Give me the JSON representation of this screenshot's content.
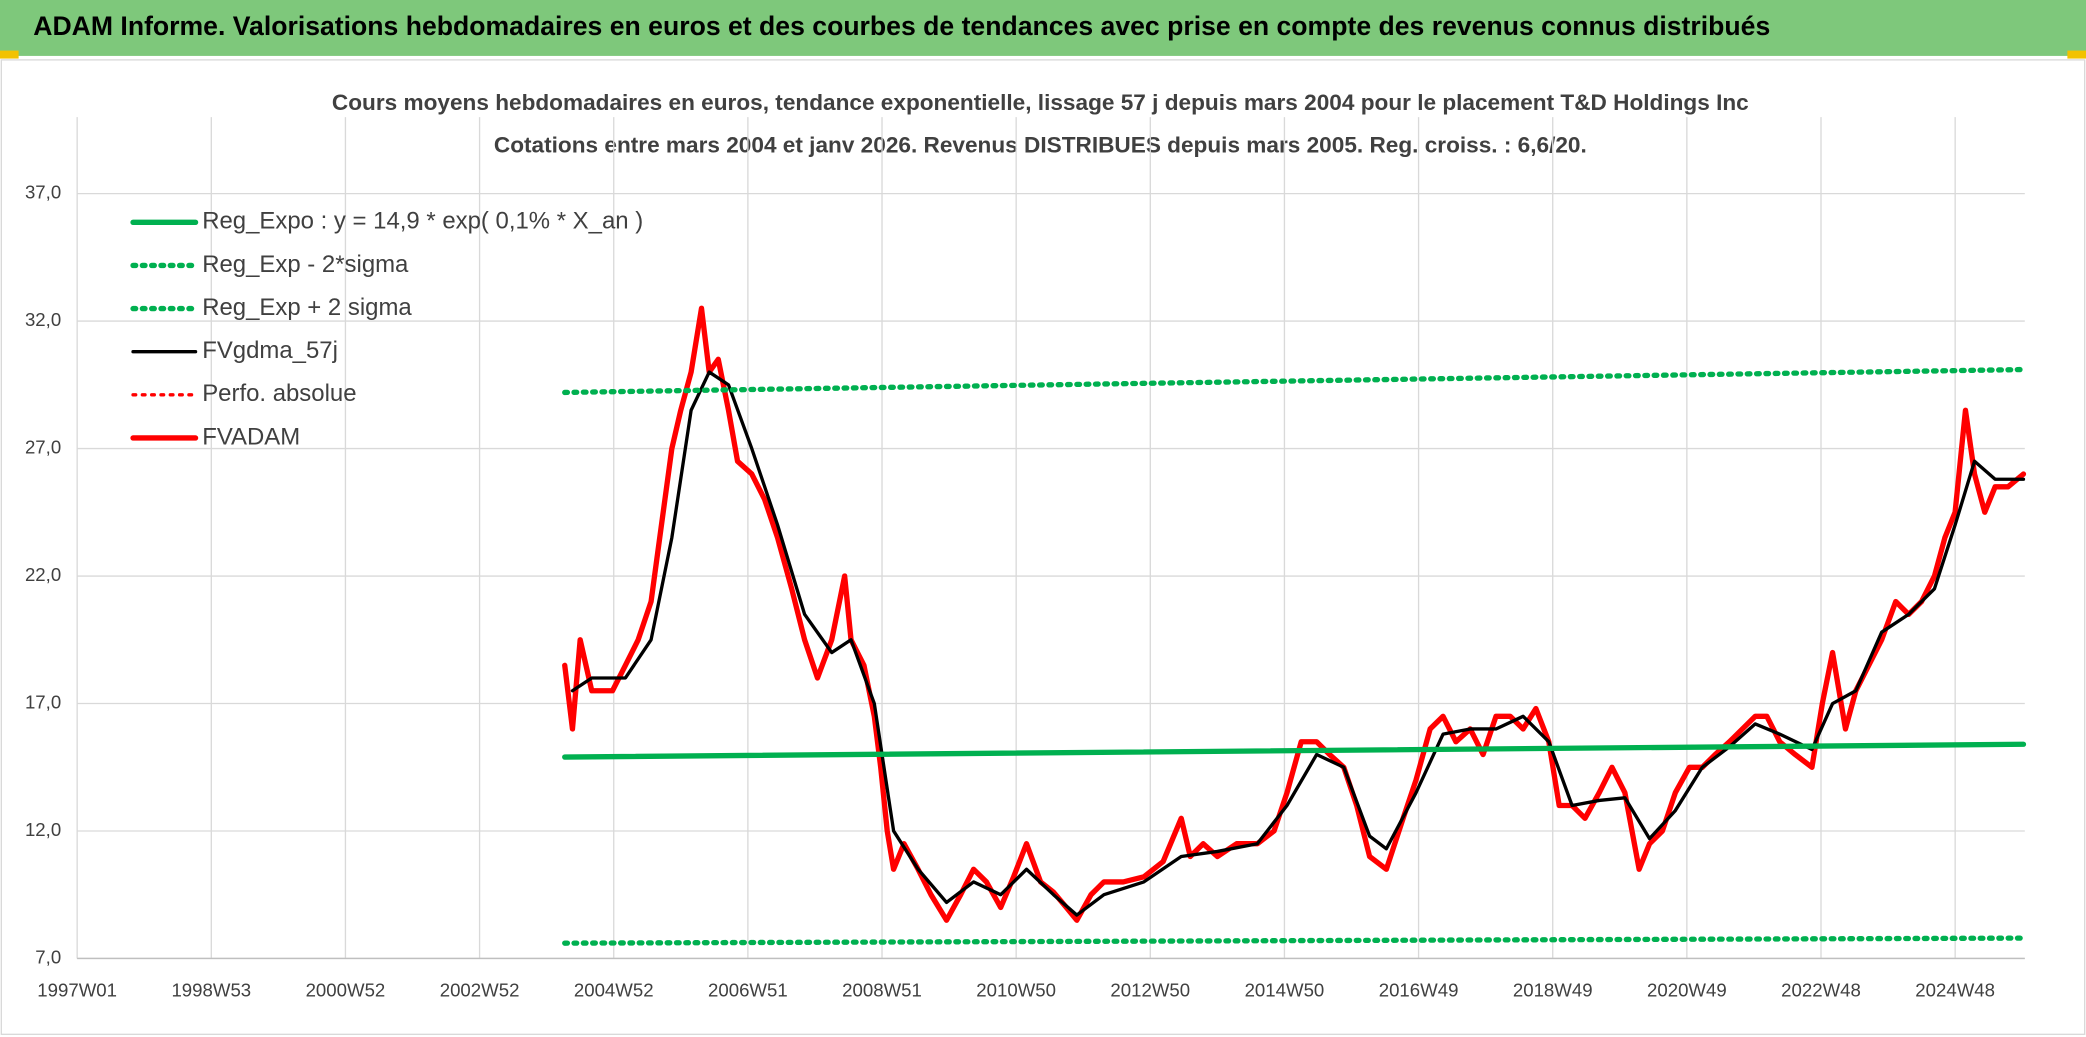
{
  "header": {
    "title": "ADAM Informe. Valorisations hebdomadaires en euros et des courbes de tendances avec prise en compte des revenus connus distribués"
  },
  "chart_data": {
    "type": "line",
    "title": "Cours moyens hebdomadaires en euros, tendance exponentielle, lissage 57 j depuis mars 2004 pour le placement T&D Holdings Inc",
    "subtitle": "Cotations entre mars 2004 et janv 2026. Revenus DISTRIBUES depuis mars 2005. Reg. croiss. : 6,6/20.",
    "xlim": [
      0,
      1510
    ],
    "xticks": [
      {
        "value": 0,
        "label": "1997W01"
      },
      {
        "value": 104,
        "label": "1998W53"
      },
      {
        "value": 208,
        "label": "2000W52"
      },
      {
        "value": 312,
        "label": "2002W52"
      },
      {
        "value": 416,
        "label": "2004W52"
      },
      {
        "value": 520,
        "label": "2006W51"
      },
      {
        "value": 624,
        "label": "2008W51"
      },
      {
        "value": 728,
        "label": "2010W50"
      },
      {
        "value": 832,
        "label": "2012W50"
      },
      {
        "value": 936,
        "label": "2014W50"
      },
      {
        "value": 1040,
        "label": "2016W49"
      },
      {
        "value": 1144,
        "label": "2018W49"
      },
      {
        "value": 1248,
        "label": "2020W49"
      },
      {
        "value": 1352,
        "label": "2022W48"
      },
      {
        "value": 1456,
        "label": "2024W48"
      }
    ],
    "ylim": [
      7,
      40
    ],
    "yticks": [
      {
        "value": 7,
        "label": "7,0"
      },
      {
        "value": 12,
        "label": "12,0"
      },
      {
        "value": 17,
        "label": "17,0"
      },
      {
        "value": 22,
        "label": "22,0"
      },
      {
        "value": 27,
        "label": "27,0"
      },
      {
        "value": 32,
        "label": "32,0"
      },
      {
        "value": 37,
        "label": "37,0"
      }
    ],
    "grid": true,
    "legend": "top-left",
    "series": [
      {
        "name": "Reg_Expo : y = 14,9 * exp( 0,1% *  X_an )",
        "color": "#00b050",
        "style": "solid",
        "weight": "bold",
        "x": [
          378,
          1509
        ],
        "values": [
          14.9,
          15.4
        ]
      },
      {
        "name": "Reg_Exp - 2*sigma",
        "color": "#00b050",
        "style": "dotted",
        "weight": "bold",
        "x": [
          378,
          1509
        ],
        "values": [
          7.6,
          7.8
        ]
      },
      {
        "name": "Reg_Exp + 2 sigma",
        "color": "#00b050",
        "style": "dotted",
        "weight": "bold",
        "x": [
          378,
          1509
        ],
        "values": [
          29.2,
          30.1
        ]
      },
      {
        "name": "FVgdma_57j",
        "color": "#000000",
        "style": "solid",
        "weight": "normal",
        "x": [
          384,
          399,
          425,
          445,
          461,
          476,
          490,
          505,
          523,
          543,
          564,
          585,
          600,
          618,
          633,
          652,
          674,
          695,
          716,
          736,
          757,
          775,
          796,
          827,
          856,
          884,
          915,
          938,
          961,
          982,
          1002,
          1015,
          1038,
          1059,
          1080,
          1100,
          1121,
          1141,
          1159,
          1180,
          1200,
          1219,
          1239,
          1260,
          1281,
          1301,
          1320,
          1345,
          1361,
          1379,
          1399,
          1420,
          1440,
          1456,
          1471,
          1487,
          1509
        ],
        "values": [
          17.5,
          18,
          18,
          19.5,
          23.5,
          28.5,
          30,
          29.5,
          27,
          24,
          20.5,
          19,
          19.5,
          17,
          12,
          10.5,
          9.2,
          10,
          9.5,
          10.5,
          9.5,
          8.7,
          9.5,
          10,
          11,
          11.2,
          11.5,
          13,
          15,
          14.5,
          11.8,
          11.3,
          13.5,
          15.8,
          16,
          16,
          16.5,
          15.5,
          13,
          13.2,
          13.3,
          11.7,
          12.8,
          14.5,
          15.3,
          16.2,
          15.8,
          15.2,
          17,
          17.5,
          19.8,
          20.5,
          21.5,
          24,
          26.5,
          25.8,
          25.8
        ]
      },
      {
        "name": "Perfo. absolue",
        "color": "#ff0000",
        "style": "dotted",
        "weight": "normal",
        "x": [],
        "values": []
      },
      {
        "name": "FVADAM",
        "color": "#ff0000",
        "style": "solid",
        "weight": "bold",
        "x": [
          378,
          384,
          390,
          399,
          415,
          425,
          435,
          445,
          453,
          461,
          468,
          476,
          484,
          490,
          497,
          505,
          512,
          523,
          533,
          543,
          554,
          564,
          574,
          585,
          595,
          600,
          610,
          618,
          623,
          628,
          633,
          641,
          652,
          662,
          674,
          685,
          695,
          705,
          716,
          726,
          736,
          747,
          757,
          767,
          775,
          786,
          796,
          811,
          827,
          842,
          856,
          863,
          873,
          884,
          899,
          915,
          928,
          938,
          949,
          961,
          971,
          982,
          992,
          1002,
          1015,
          1028,
          1038,
          1049,
          1059,
          1069,
          1080,
          1090,
          1100,
          1111,
          1121,
          1131,
          1141,
          1149,
          1159,
          1169,
          1180,
          1190,
          1200,
          1211,
          1219,
          1229,
          1239,
          1250,
          1260,
          1270,
          1281,
          1291,
          1301,
          1310,
          1320,
          1332,
          1345,
          1353,
          1361,
          1371,
          1379,
          1389,
          1399,
          1410,
          1420,
          1430,
          1440,
          1448,
          1456,
          1464,
          1471,
          1479,
          1487,
          1497,
          1509
        ],
        "values": [
          18.5,
          16,
          19.5,
          17.5,
          17.5,
          18.5,
          19.5,
          21,
          24,
          27,
          28.5,
          30,
          32.5,
          30,
          30.5,
          28.5,
          26.5,
          26,
          25,
          23.5,
          21.5,
          19.5,
          18,
          19.5,
          22,
          19.5,
          18.5,
          16.5,
          14.5,
          12,
          10.5,
          11.5,
          10.5,
          9.5,
          8.5,
          9.5,
          10.5,
          10,
          9,
          10.2,
          11.5,
          10,
          9.6,
          9,
          8.5,
          9.5,
          10,
          10,
          10.2,
          10.8,
          12.5,
          11,
          11.5,
          11,
          11.5,
          11.5,
          12,
          13.5,
          15.5,
          15.5,
          15,
          14.5,
          13,
          11,
          10.5,
          12.5,
          14,
          16,
          16.5,
          15.5,
          16,
          15,
          16.5,
          16.5,
          16,
          16.8,
          15.5,
          13,
          13,
          12.5,
          13.5,
          14.5,
          13.5,
          10.5,
          11.5,
          12,
          13.5,
          14.5,
          14.5,
          15,
          15.5,
          16,
          16.5,
          16.5,
          15.5,
          15,
          14.5,
          17,
          19,
          16,
          17.5,
          18.5,
          19.5,
          21,
          20.5,
          21,
          22,
          23.5,
          24.5,
          28.5,
          26,
          24.5,
          25.5,
          25.5,
          26
        ]
      }
    ]
  }
}
